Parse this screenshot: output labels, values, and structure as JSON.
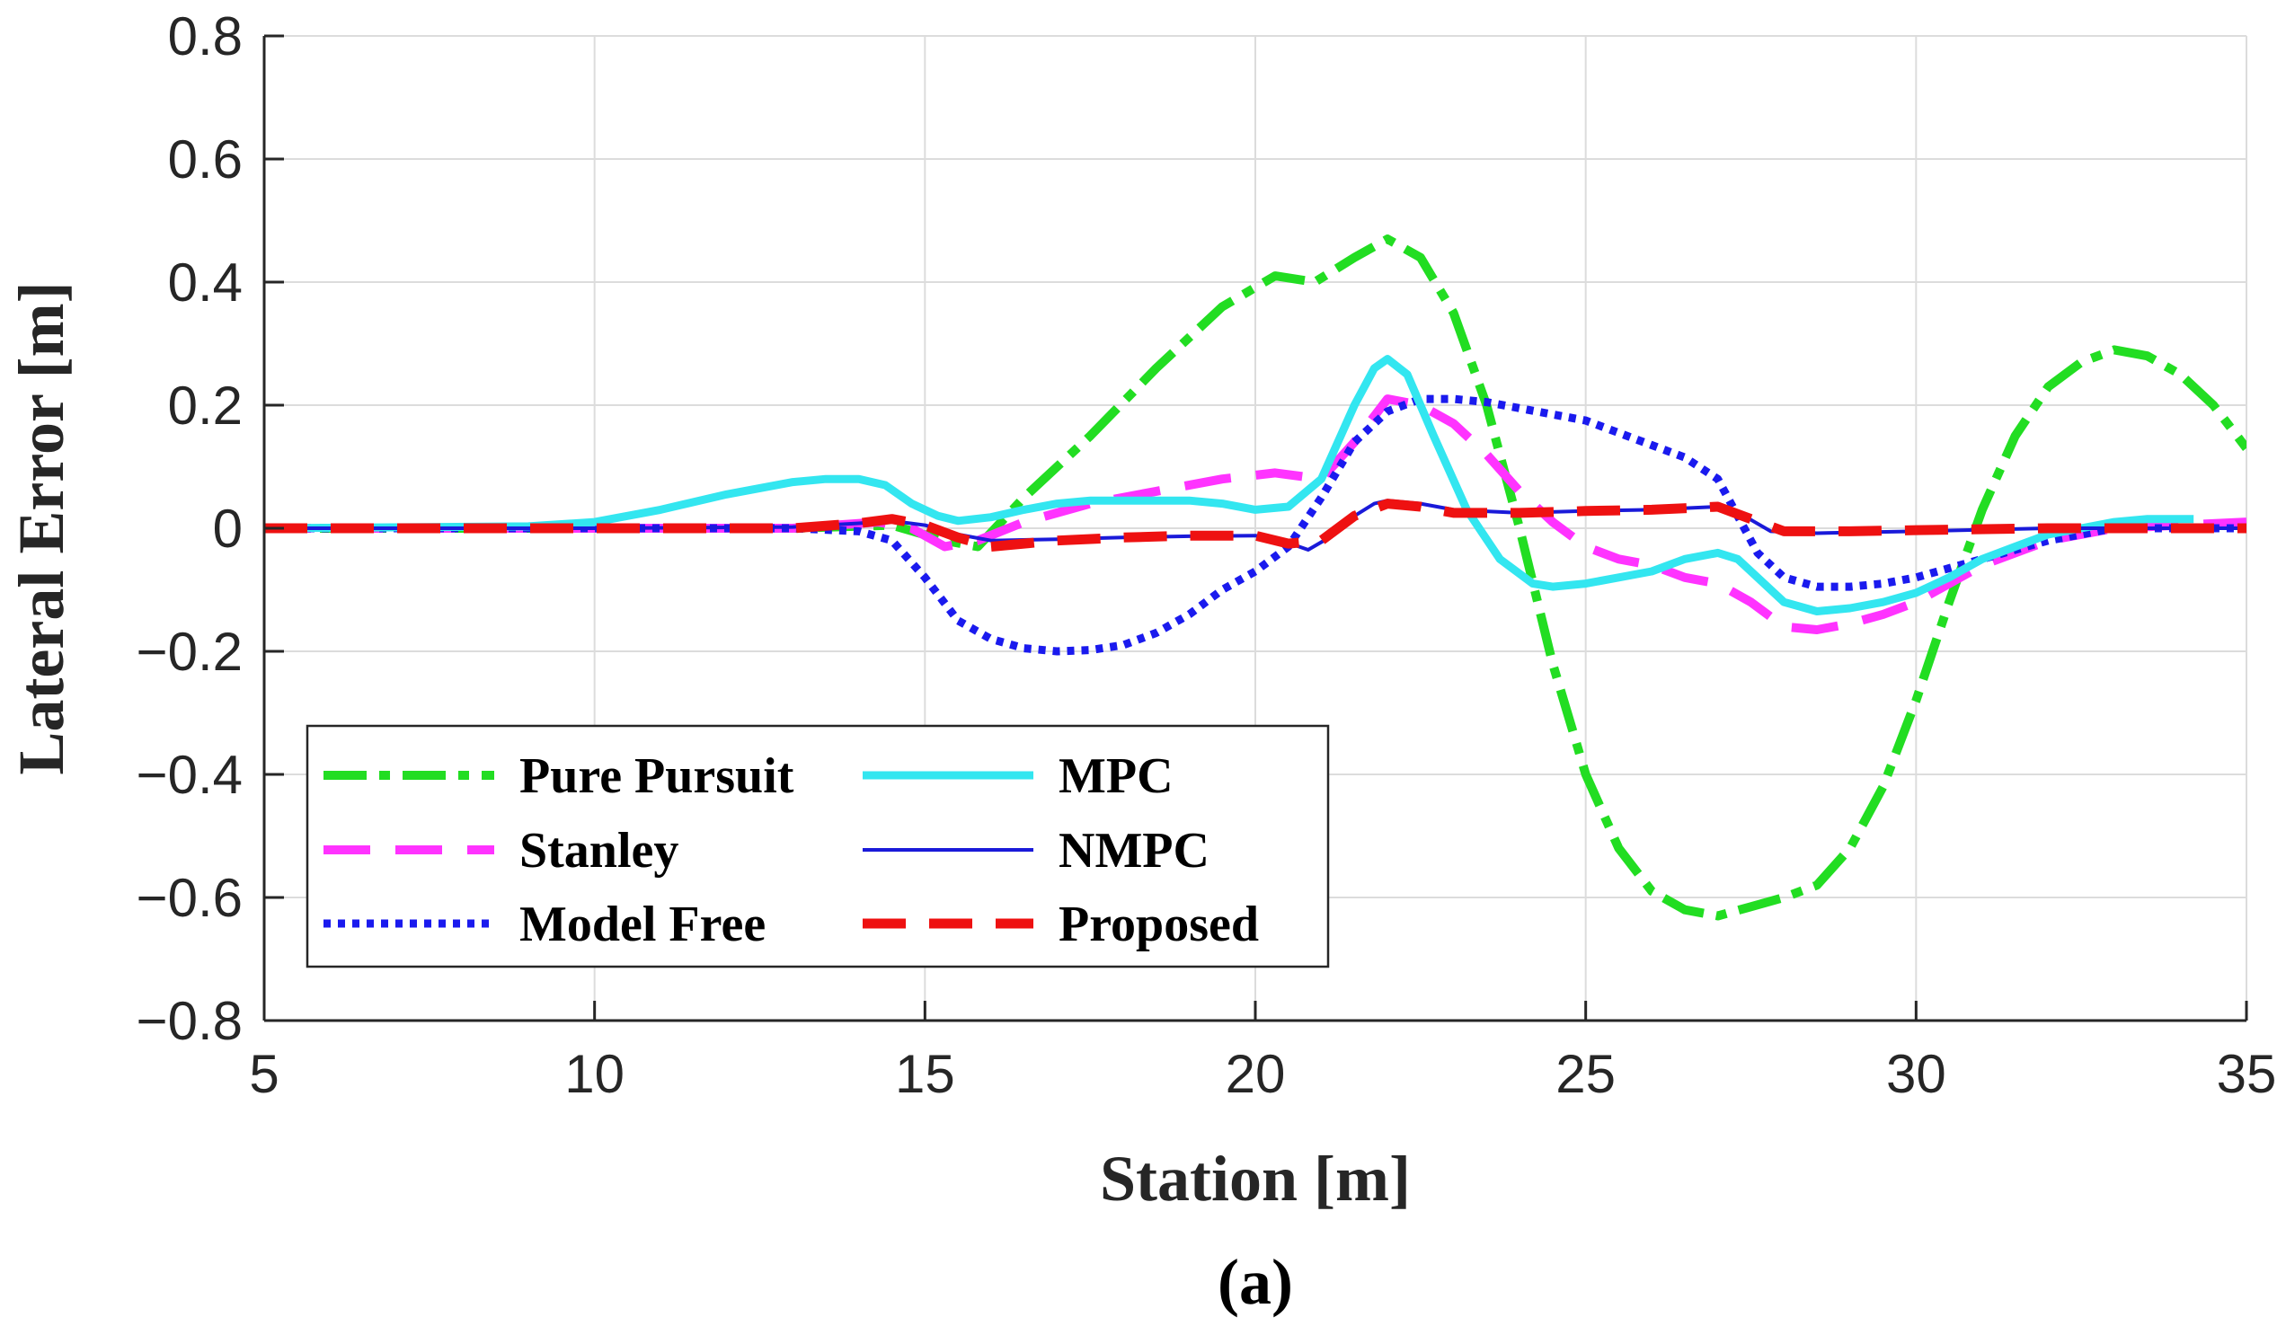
{
  "chart_data": {
    "type": "line",
    "title": "",
    "xlabel": "Station [m]",
    "ylabel": "Lateral Error [m]",
    "caption": "(a)",
    "xlim": [
      5,
      35
    ],
    "ylim": [
      -0.8,
      0.8
    ],
    "xticks": [
      5,
      10,
      15,
      20,
      25,
      30,
      35
    ],
    "xtick_labels": [
      "5",
      "10",
      "15",
      "20",
      "25",
      "30",
      "35"
    ],
    "yticks": [
      -0.8,
      -0.6,
      -0.4,
      -0.2,
      0,
      0.2,
      0.4,
      0.6,
      0.8
    ],
    "ytick_labels": [
      "−0.8",
      "−0.6",
      "−0.4",
      "−0.2",
      "0",
      "0.2",
      "0.4",
      "0.6",
      "0.8"
    ],
    "grid": true,
    "legend_position": "bottom-left",
    "series": [
      {
        "name": "Pure Pursuit",
        "color": "#22dd22",
        "style": "dashdot",
        "x": [
          5,
          10,
          13,
          14.5,
          15.3,
          15.8,
          16.5,
          17.5,
          18.5,
          19.5,
          20.3,
          20.9,
          21.5,
          22,
          22.5,
          23,
          23.5,
          24,
          24.5,
          25,
          25.5,
          26,
          26.5,
          27,
          27.5,
          28,
          28.5,
          29,
          29.5,
          30,
          30.5,
          31,
          31.5,
          32,
          32.5,
          33,
          33.5,
          34,
          34.5,
          35
        ],
        "values": [
          0,
          0,
          0,
          0.005,
          -0.02,
          -0.03,
          0.05,
          0.15,
          0.26,
          0.36,
          0.41,
          0.4,
          0.44,
          0.47,
          0.44,
          0.35,
          0.2,
          0,
          -0.22,
          -0.4,
          -0.52,
          -0.59,
          -0.62,
          -0.63,
          -0.615,
          -0.6,
          -0.58,
          -0.52,
          -0.42,
          -0.28,
          -0.12,
          0.03,
          0.15,
          0.23,
          0.27,
          0.29,
          0.28,
          0.25,
          0.2,
          0.13
        ]
      },
      {
        "name": "Stanley",
        "color": "#ff33ff",
        "style": "dash",
        "x": [
          5,
          10,
          13,
          14.3,
          14.8,
          15.3,
          15.8,
          16.5,
          17.5,
          18.5,
          19.5,
          20.3,
          21,
          21.5,
          22,
          22.5,
          23,
          23.5,
          24,
          24.5,
          25,
          25.5,
          26,
          26.5,
          27,
          27.5,
          28,
          28.5,
          29,
          29.5,
          30,
          30.5,
          31,
          31.5,
          32,
          33,
          34,
          35
        ],
        "values": [
          0,
          0,
          0,
          0.01,
          0,
          -0.03,
          -0.02,
          0.01,
          0.04,
          0.06,
          0.08,
          0.09,
          0.08,
          0.14,
          0.21,
          0.2,
          0.17,
          0.12,
          0.06,
          0.01,
          -0.03,
          -0.05,
          -0.06,
          -0.08,
          -0.09,
          -0.12,
          -0.16,
          -0.165,
          -0.155,
          -0.14,
          -0.12,
          -0.09,
          -0.06,
          -0.04,
          -0.02,
          0,
          0.005,
          0.01
        ]
      },
      {
        "name": "Model Free",
        "color": "#1a1aee",
        "style": "dot",
        "x": [
          5,
          10,
          13,
          14,
          14.5,
          15,
          15.5,
          16,
          16.5,
          17,
          17.5,
          18,
          18.5,
          19,
          19.5,
          20,
          20.5,
          21,
          21.5,
          22,
          22.5,
          23,
          23.5,
          24,
          24.5,
          25,
          25.5,
          26,
          26.5,
          27,
          27.3,
          27.6,
          28,
          28.5,
          29,
          29.5,
          30,
          30.5,
          31,
          31.5,
          32,
          32.5,
          33,
          34,
          35
        ],
        "values": [
          0,
          0,
          0,
          -0.005,
          -0.02,
          -0.08,
          -0.15,
          -0.18,
          -0.195,
          -0.2,
          -0.198,
          -0.19,
          -0.17,
          -0.14,
          -0.1,
          -0.07,
          -0.03,
          0.05,
          0.14,
          0.19,
          0.21,
          0.21,
          0.205,
          0.195,
          0.185,
          0.175,
          0.155,
          0.135,
          0.115,
          0.08,
          0.02,
          -0.04,
          -0.08,
          -0.095,
          -0.095,
          -0.09,
          -0.08,
          -0.065,
          -0.05,
          -0.035,
          -0.02,
          -0.01,
          0,
          0,
          0
        ]
      },
      {
        "name": "MPC",
        "color": "#33e6f0",
        "style": "solid",
        "x": [
          5,
          9,
          10,
          11,
          12,
          13,
          13.5,
          14,
          14.4,
          14.8,
          15.2,
          15.5,
          16,
          16.5,
          17,
          17.5,
          18,
          18.5,
          19,
          19.5,
          20,
          20.5,
          21,
          21.5,
          21.8,
          22,
          22.3,
          22.7,
          23.2,
          23.7,
          24.2,
          24.5,
          25,
          25.5,
          26,
          26.5,
          27,
          27.3,
          27.6,
          28,
          28.5,
          29,
          29.5,
          30,
          30.5,
          31,
          31.5,
          32,
          32.5,
          33,
          33.5,
          34,
          34.2
        ],
        "values": [
          0,
          0.003,
          0.01,
          0.03,
          0.055,
          0.075,
          0.08,
          0.08,
          0.07,
          0.04,
          0.02,
          0.012,
          0.018,
          0.03,
          0.04,
          0.045,
          0.045,
          0.045,
          0.045,
          0.04,
          0.03,
          0.035,
          0.08,
          0.2,
          0.26,
          0.275,
          0.25,
          0.15,
          0.03,
          -0.05,
          -0.09,
          -0.095,
          -0.09,
          -0.08,
          -0.07,
          -0.05,
          -0.04,
          -0.05,
          -0.08,
          -0.12,
          -0.135,
          -0.13,
          -0.12,
          -0.105,
          -0.08,
          -0.05,
          -0.03,
          -0.01,
          0,
          0.01,
          0.015,
          0.015,
          0.015
        ]
      },
      {
        "name": "NMPC",
        "color": "#1a1ad9",
        "style": "solid-thin",
        "x": [
          5,
          10,
          13,
          14,
          14.5,
          15,
          15.5,
          16,
          17,
          18,
          19,
          20,
          20.4,
          20.8,
          21.2,
          21.5,
          21.8,
          22,
          22.5,
          23,
          24,
          25,
          26,
          27,
          27.4,
          27.8,
          28.5,
          30,
          32,
          34,
          35
        ],
        "values": [
          0,
          0,
          0.002,
          0.008,
          0.012,
          0.005,
          -0.01,
          -0.02,
          -0.018,
          -0.015,
          -0.013,
          -0.012,
          -0.02,
          -0.035,
          -0.01,
          0.02,
          0.04,
          0.045,
          0.04,
          0.03,
          0.025,
          0.028,
          0.03,
          0.035,
          0.02,
          -0.005,
          -0.008,
          -0.005,
          0,
          0,
          0
        ]
      },
      {
        "name": "Proposed",
        "color": "#ee1111",
        "style": "dash-thick",
        "x": [
          5,
          10,
          13,
          14,
          14.5,
          15,
          15.5,
          16,
          17,
          18,
          19,
          20,
          20.5,
          21,
          21.5,
          22,
          22.5,
          23,
          24,
          25,
          26,
          27,
          27.5,
          28,
          29,
          30,
          32,
          34,
          35
        ],
        "values": [
          0,
          0,
          0,
          0.008,
          0.015,
          0.005,
          -0.015,
          -0.03,
          -0.02,
          -0.015,
          -0.012,
          -0.012,
          -0.025,
          -0.02,
          0.02,
          0.04,
          0.035,
          0.025,
          0.025,
          0.028,
          0.03,
          0.035,
          0.015,
          -0.005,
          -0.005,
          -0.003,
          0,
          0,
          0
        ]
      }
    ]
  }
}
